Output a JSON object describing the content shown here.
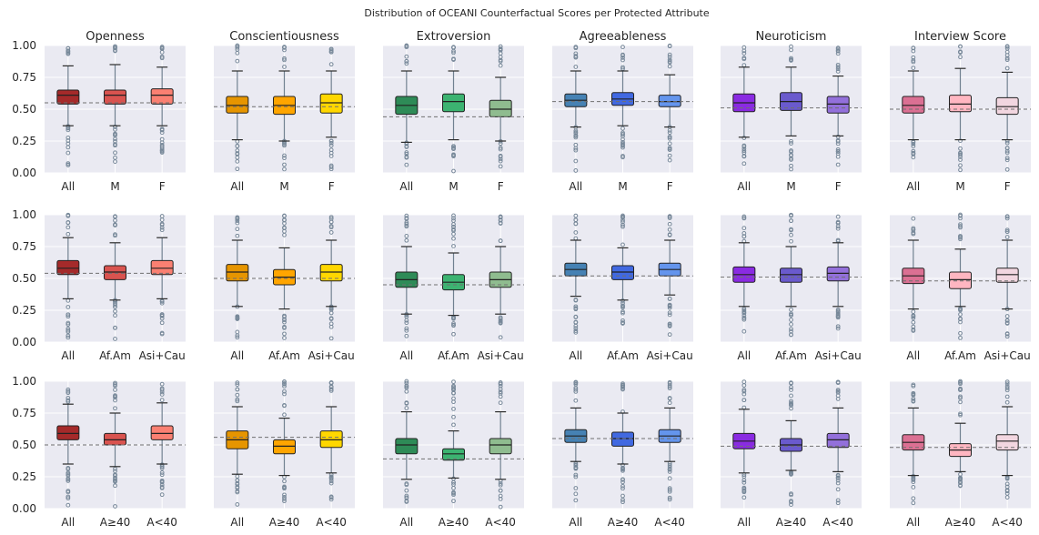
{
  "title": "Distribution of OCEANI Counterfactual Scores per Protected Attribute",
  "y_ticks": [
    "0.00",
    "0.25",
    "0.50",
    "0.75",
    "1.00"
  ],
  "row_categories": [
    [
      "All",
      "M",
      "F"
    ],
    [
      "All",
      "Af.Am",
      "Asi+Cau"
    ],
    [
      "All",
      "A≥40",
      "A<40"
    ]
  ],
  "colors": {
    "background": "#eaeaf2",
    "grid": "#ffffff",
    "whisker": "#708090",
    "cap": "#2b2b2b",
    "flier": "#778899",
    "mean_line": "#707070",
    "traits": [
      [
        "#a52a2a",
        "#d9534f",
        "#fa8072"
      ],
      [
        "#e69500",
        "#ffa500",
        "#ffd700"
      ],
      [
        "#2e8b57",
        "#3cb371",
        "#8fbc8f"
      ],
      [
        "#4682b4",
        "#4169e1",
        "#6495ed"
      ],
      [
        "#8a2be2",
        "#6a5acd",
        "#9370db"
      ],
      [
        "#db7093",
        "#ffb6c1",
        "#f2d6e0"
      ]
    ]
  },
  "chart_data": [
    {
      "type": "box",
      "trait": "Openness",
      "attribute_row": 1,
      "categories": [
        "All",
        "M",
        "F"
      ],
      "ylim": [
        0,
        1
      ],
      "mean_line": 0.55,
      "boxes": [
        {
          "q1": 0.54,
          "median": 0.61,
          "q3": 0.65,
          "whislo": 0.37,
          "whishi": 0.84
        },
        {
          "q1": 0.54,
          "median": 0.61,
          "q3": 0.65,
          "whislo": 0.37,
          "whishi": 0.85
        },
        {
          "q1": 0.54,
          "median": 0.61,
          "q3": 0.66,
          "whislo": 0.37,
          "whishi": 0.83
        }
      ]
    },
    {
      "type": "box",
      "trait": "Conscientiousness",
      "attribute_row": 1,
      "categories": [
        "All",
        "M",
        "F"
      ],
      "ylim": [
        0,
        1
      ],
      "mean_line": 0.52,
      "boxes": [
        {
          "q1": 0.47,
          "median": 0.53,
          "q3": 0.6,
          "whislo": 0.26,
          "whishi": 0.8
        },
        {
          "q1": 0.46,
          "median": 0.53,
          "q3": 0.6,
          "whislo": 0.25,
          "whishi": 0.8
        },
        {
          "q1": 0.47,
          "median": 0.55,
          "q3": 0.62,
          "whislo": 0.28,
          "whishi": 0.8
        }
      ]
    },
    {
      "type": "box",
      "trait": "Extroversion",
      "attribute_row": 1,
      "categories": [
        "All",
        "M",
        "F"
      ],
      "ylim": [
        0,
        1
      ],
      "mean_line": 0.44,
      "boxes": [
        {
          "q1": 0.46,
          "median": 0.53,
          "q3": 0.6,
          "whislo": 0.24,
          "whishi": 0.8
        },
        {
          "q1": 0.48,
          "median": 0.56,
          "q3": 0.62,
          "whislo": 0.26,
          "whishi": 0.8
        },
        {
          "q1": 0.44,
          "median": 0.5,
          "q3": 0.57,
          "whislo": 0.25,
          "whishi": 0.75
        }
      ]
    },
    {
      "type": "box",
      "trait": "Agreeableness",
      "attribute_row": 1,
      "categories": [
        "All",
        "M",
        "F"
      ],
      "ylim": [
        0,
        1
      ],
      "mean_line": 0.56,
      "boxes": [
        {
          "q1": 0.52,
          "median": 0.57,
          "q3": 0.62,
          "whislo": 0.36,
          "whishi": 0.8
        },
        {
          "q1": 0.53,
          "median": 0.58,
          "q3": 0.63,
          "whislo": 0.37,
          "whishi": 0.8
        },
        {
          "q1": 0.52,
          "median": 0.56,
          "q3": 0.61,
          "whislo": 0.36,
          "whishi": 0.77
        }
      ]
    },
    {
      "type": "box",
      "trait": "Neuroticism",
      "attribute_row": 1,
      "categories": [
        "All",
        "M",
        "F"
      ],
      "ylim": [
        0,
        1
      ],
      "mean_line": 0.51,
      "boxes": [
        {
          "q1": 0.48,
          "median": 0.55,
          "q3": 0.62,
          "whislo": 0.28,
          "whishi": 0.83
        },
        {
          "q1": 0.49,
          "median": 0.56,
          "q3": 0.63,
          "whislo": 0.29,
          "whishi": 0.83
        },
        {
          "q1": 0.47,
          "median": 0.54,
          "q3": 0.6,
          "whislo": 0.29,
          "whishi": 0.76
        }
      ]
    },
    {
      "type": "box",
      "trait": "Interview Score",
      "attribute_row": 1,
      "categories": [
        "All",
        "M",
        "F"
      ],
      "ylim": [
        0,
        1
      ],
      "mean_line": 0.5,
      "boxes": [
        {
          "q1": 0.47,
          "median": 0.53,
          "q3": 0.6,
          "whislo": 0.26,
          "whishi": 0.8
        },
        {
          "q1": 0.48,
          "median": 0.54,
          "q3": 0.61,
          "whislo": 0.26,
          "whishi": 0.82
        },
        {
          "q1": 0.46,
          "median": 0.52,
          "q3": 0.59,
          "whislo": 0.26,
          "whishi": 0.79
        }
      ]
    },
    {
      "type": "box",
      "trait": "Openness",
      "attribute_row": 2,
      "categories": [
        "All",
        "Af.Am",
        "Asi+Cau"
      ],
      "ylim": [
        0,
        1
      ],
      "mean_line": 0.54,
      "boxes": [
        {
          "q1": 0.53,
          "median": 0.58,
          "q3": 0.64,
          "whislo": 0.34,
          "whishi": 0.82
        },
        {
          "q1": 0.49,
          "median": 0.55,
          "q3": 0.6,
          "whislo": 0.33,
          "whishi": 0.78
        },
        {
          "q1": 0.53,
          "median": 0.58,
          "q3": 0.64,
          "whislo": 0.34,
          "whishi": 0.82
        }
      ]
    },
    {
      "type": "box",
      "trait": "Conscientiousness",
      "attribute_row": 2,
      "categories": [
        "All",
        "Af.Am",
        "Asi+Cau"
      ],
      "ylim": [
        0,
        1
      ],
      "mean_line": 0.5,
      "boxes": [
        {
          "q1": 0.48,
          "median": 0.55,
          "q3": 0.61,
          "whislo": 0.28,
          "whishi": 0.8
        },
        {
          "q1": 0.45,
          "median": 0.51,
          "q3": 0.57,
          "whislo": 0.26,
          "whishi": 0.74
        },
        {
          "q1": 0.48,
          "median": 0.55,
          "q3": 0.61,
          "whislo": 0.28,
          "whishi": 0.8
        }
      ]
    },
    {
      "type": "box",
      "trait": "Extroversion",
      "attribute_row": 2,
      "categories": [
        "All",
        "Af.Am",
        "Asi+Cau"
      ],
      "ylim": [
        0,
        1
      ],
      "mean_line": 0.45,
      "boxes": [
        {
          "q1": 0.43,
          "median": 0.49,
          "q3": 0.55,
          "whislo": 0.22,
          "whishi": 0.75
        },
        {
          "q1": 0.41,
          "median": 0.47,
          "q3": 0.53,
          "whislo": 0.21,
          "whishi": 0.7
        },
        {
          "q1": 0.43,
          "median": 0.49,
          "q3": 0.55,
          "whislo": 0.22,
          "whishi": 0.75
        }
      ]
    },
    {
      "type": "box",
      "trait": "Agreeableness",
      "attribute_row": 2,
      "categories": [
        "All",
        "Af.Am",
        "Asi+Cau"
      ],
      "ylim": [
        0,
        1
      ],
      "mean_line": 0.52,
      "boxes": [
        {
          "q1": 0.52,
          "median": 0.57,
          "q3": 0.62,
          "whislo": 0.36,
          "whishi": 0.8
        },
        {
          "q1": 0.49,
          "median": 0.55,
          "q3": 0.6,
          "whislo": 0.33,
          "whishi": 0.74
        },
        {
          "q1": 0.52,
          "median": 0.57,
          "q3": 0.62,
          "whislo": 0.37,
          "whishi": 0.8
        }
      ]
    },
    {
      "type": "box",
      "trait": "Neuroticism",
      "attribute_row": 2,
      "categories": [
        "All",
        "Af.Am",
        "Asi+Cau"
      ],
      "ylim": [
        0,
        1
      ],
      "mean_line": 0.51,
      "boxes": [
        {
          "q1": 0.47,
          "median": 0.53,
          "q3": 0.59,
          "whislo": 0.28,
          "whishi": 0.78
        },
        {
          "q1": 0.47,
          "median": 0.53,
          "q3": 0.58,
          "whislo": 0.28,
          "whishi": 0.75
        },
        {
          "q1": 0.48,
          "median": 0.54,
          "q3": 0.59,
          "whislo": 0.28,
          "whishi": 0.78
        }
      ]
    },
    {
      "type": "box",
      "trait": "Interview Score",
      "attribute_row": 2,
      "categories": [
        "All",
        "Af.Am",
        "Asi+Cau"
      ],
      "ylim": [
        0,
        1
      ],
      "mean_line": 0.48,
      "boxes": [
        {
          "q1": 0.46,
          "median": 0.52,
          "q3": 0.58,
          "whislo": 0.26,
          "whishi": 0.8
        },
        {
          "q1": 0.42,
          "median": 0.49,
          "q3": 0.55,
          "whislo": 0.28,
          "whishi": 0.73
        },
        {
          "q1": 0.47,
          "median": 0.53,
          "q3": 0.58,
          "whislo": 0.26,
          "whishi": 0.8
        }
      ]
    },
    {
      "type": "box",
      "trait": "Openness",
      "attribute_row": 3,
      "categories": [
        "All",
        "A≥40",
        "A<40"
      ],
      "ylim": [
        0,
        1
      ],
      "mean_line": 0.5,
      "boxes": [
        {
          "q1": 0.54,
          "median": 0.59,
          "q3": 0.65,
          "whislo": 0.35,
          "whishi": 0.82
        },
        {
          "q1": 0.5,
          "median": 0.54,
          "q3": 0.59,
          "whislo": 0.33,
          "whishi": 0.75
        },
        {
          "q1": 0.54,
          "median": 0.59,
          "q3": 0.65,
          "whislo": 0.35,
          "whishi": 0.83
        }
      ]
    },
    {
      "type": "box",
      "trait": "Conscientiousness",
      "attribute_row": 3,
      "categories": [
        "All",
        "A≥40",
        "A<40"
      ],
      "ylim": [
        0,
        1
      ],
      "mean_line": 0.56,
      "boxes": [
        {
          "q1": 0.47,
          "median": 0.54,
          "q3": 0.61,
          "whislo": 0.27,
          "whishi": 0.8
        },
        {
          "q1": 0.43,
          "median": 0.49,
          "q3": 0.54,
          "whislo": 0.26,
          "whishi": 0.71
        },
        {
          "q1": 0.48,
          "median": 0.54,
          "q3": 0.61,
          "whislo": 0.28,
          "whishi": 0.8
        }
      ]
    },
    {
      "type": "box",
      "trait": "Extroversion",
      "attribute_row": 3,
      "categories": [
        "All",
        "A≥40",
        "A<40"
      ],
      "ylim": [
        0,
        1
      ],
      "mean_line": 0.39,
      "boxes": [
        {
          "q1": 0.43,
          "median": 0.5,
          "q3": 0.55,
          "whislo": 0.23,
          "whishi": 0.76
        },
        {
          "q1": 0.38,
          "median": 0.43,
          "q3": 0.47,
          "whislo": 0.24,
          "whishi": 0.61
        },
        {
          "q1": 0.43,
          "median": 0.5,
          "q3": 0.55,
          "whislo": 0.23,
          "whishi": 0.76
        }
      ]
    },
    {
      "type": "box",
      "trait": "Agreeableness",
      "attribute_row": 3,
      "categories": [
        "All",
        "A≥40",
        "A<40"
      ],
      "ylim": [
        0,
        1
      ],
      "mean_line": 0.55,
      "boxes": [
        {
          "q1": 0.52,
          "median": 0.57,
          "q3": 0.62,
          "whislo": 0.37,
          "whishi": 0.79
        },
        {
          "q1": 0.49,
          "median": 0.55,
          "q3": 0.6,
          "whislo": 0.35,
          "whishi": 0.75
        },
        {
          "q1": 0.52,
          "median": 0.57,
          "q3": 0.62,
          "whislo": 0.37,
          "whishi": 0.79
        }
      ]
    },
    {
      "type": "box",
      "trait": "Neuroticism",
      "attribute_row": 3,
      "categories": [
        "All",
        "A≥40",
        "A<40"
      ],
      "ylim": [
        0,
        1
      ],
      "mean_line": 0.49,
      "boxes": [
        {
          "q1": 0.47,
          "median": 0.53,
          "q3": 0.59,
          "whislo": 0.28,
          "whishi": 0.78
        },
        {
          "q1": 0.45,
          "median": 0.5,
          "q3": 0.55,
          "whislo": 0.3,
          "whishi": 0.69
        },
        {
          "q1": 0.48,
          "median": 0.54,
          "q3": 0.59,
          "whislo": 0.29,
          "whishi": 0.79
        }
      ]
    },
    {
      "type": "box",
      "trait": "Interview Score",
      "attribute_row": 3,
      "categories": [
        "All",
        "A≥40",
        "A<40"
      ],
      "ylim": [
        0,
        1
      ],
      "mean_line": 0.48,
      "boxes": [
        {
          "q1": 0.46,
          "median": 0.52,
          "q3": 0.58,
          "whislo": 0.26,
          "whishi": 0.79
        },
        {
          "q1": 0.41,
          "median": 0.46,
          "q3": 0.51,
          "whislo": 0.29,
          "whishi": 0.67
        },
        {
          "q1": 0.46,
          "median": 0.53,
          "q3": 0.58,
          "whislo": 0.26,
          "whishi": 0.8
        }
      ]
    }
  ]
}
